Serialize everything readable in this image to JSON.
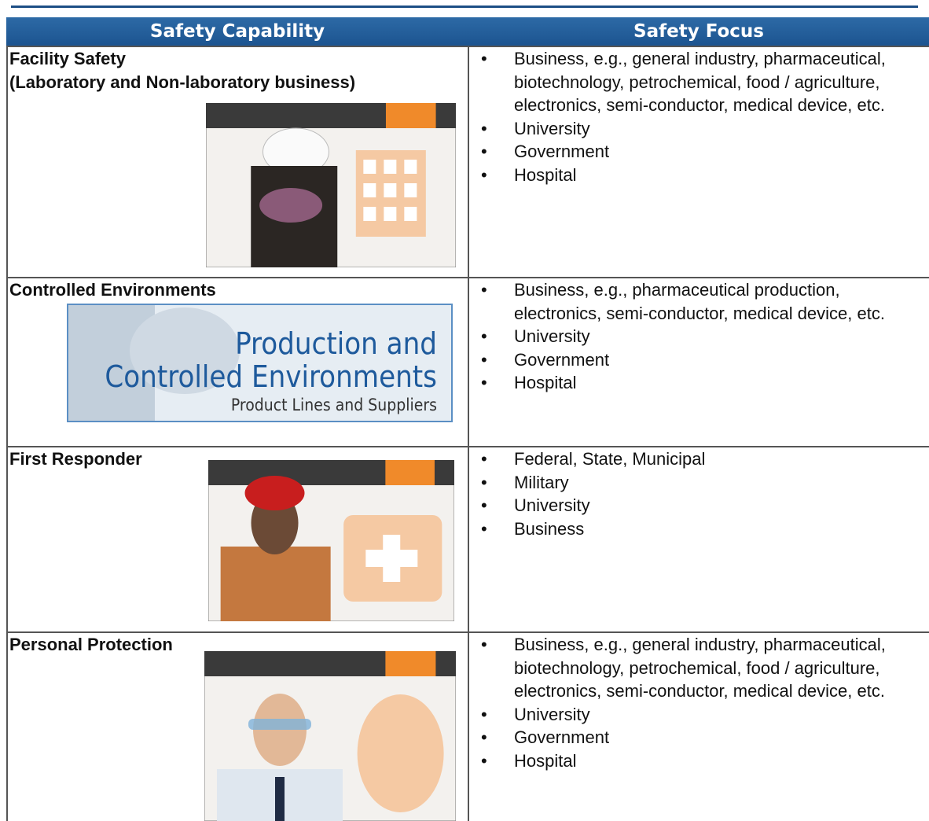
{
  "header": {
    "columns": [
      "Safety Capability",
      "Safety Focus"
    ]
  },
  "rows": [
    {
      "capability": [
        "Facility Safety",
        "(Laboratory and Non-laboratory business)"
      ],
      "focus": [
        "Business, e.g., general industry, pharmaceutical, biotechnology, petrochemical, food / agriculture, electronics, semi-conductor, medical device, etc.",
        "University",
        "Government",
        "Hospital"
      ]
    },
    {
      "capability": [
        "Controlled Environments"
      ],
      "image_text": [
        "Production and",
        "Controlled Environments",
        "Product Lines and Suppliers"
      ],
      "focus": [
        "Business, e.g., pharmaceutical production, electronics, semi-conductor, medical device, etc.",
        "University",
        "Government",
        "Hospital"
      ]
    },
    {
      "capability": [
        "First Responder"
      ],
      "focus": [
        "Federal, State, Municipal",
        "Military",
        "University",
        "Business"
      ]
    },
    {
      "capability": [
        "Personal Protection"
      ],
      "focus": [
        "Business, e.g., general industry, pharmaceutical, biotechnology, petrochemical, food / agriculture, electronics, semi-conductor, medical device, etc.",
        "University",
        "Government",
        "Hospital"
      ]
    }
  ]
}
